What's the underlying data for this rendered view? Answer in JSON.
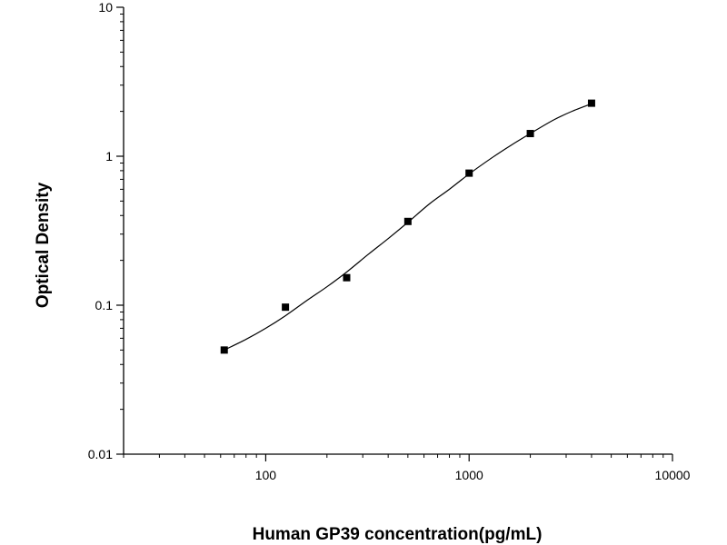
{
  "chart_data": {
    "type": "scatter",
    "title": "",
    "xlabel": "Human GP39 concentration(pg/mL)",
    "ylabel": "Optical Density",
    "x_scale": "log",
    "y_scale": "log",
    "xlim": [
      20,
      10000
    ],
    "ylim": [
      0.01,
      10
    ],
    "x_ticks": [
      {
        "value": 100,
        "label": "100"
      },
      {
        "value": 1000,
        "label": "1000"
      },
      {
        "value": 10000,
        "label": "10000"
      }
    ],
    "y_ticks": [
      {
        "value": 0.01,
        "label": "0.01"
      },
      {
        "value": 0.1,
        "label": "0.1"
      },
      {
        "value": 1,
        "label": "1"
      },
      {
        "value": 10,
        "label": "10"
      }
    ],
    "grid": false,
    "legend": "none",
    "series": [
      {
        "marker": "square",
        "color": "#000000",
        "x": [
          62.5,
          125,
          250,
          500,
          1000,
          2000,
          4000
        ],
        "y": [
          0.05,
          0.097,
          0.153,
          0.365,
          0.77,
          1.42,
          2.27
        ]
      }
    ],
    "fit_curve": {
      "color": "#000000",
      "x": [
        62.5,
        80,
        100,
        125,
        160,
        200,
        250,
        320,
        400,
        500,
        640,
        800,
        1000,
        1300,
        1600,
        2000,
        2600,
        3200,
        4000
      ],
      "y": [
        0.05,
        0.059,
        0.07,
        0.085,
        0.108,
        0.133,
        0.167,
        0.22,
        0.28,
        0.36,
        0.48,
        0.6,
        0.76,
        0.98,
        1.18,
        1.42,
        1.75,
        2.0,
        2.25
      ]
    }
  }
}
